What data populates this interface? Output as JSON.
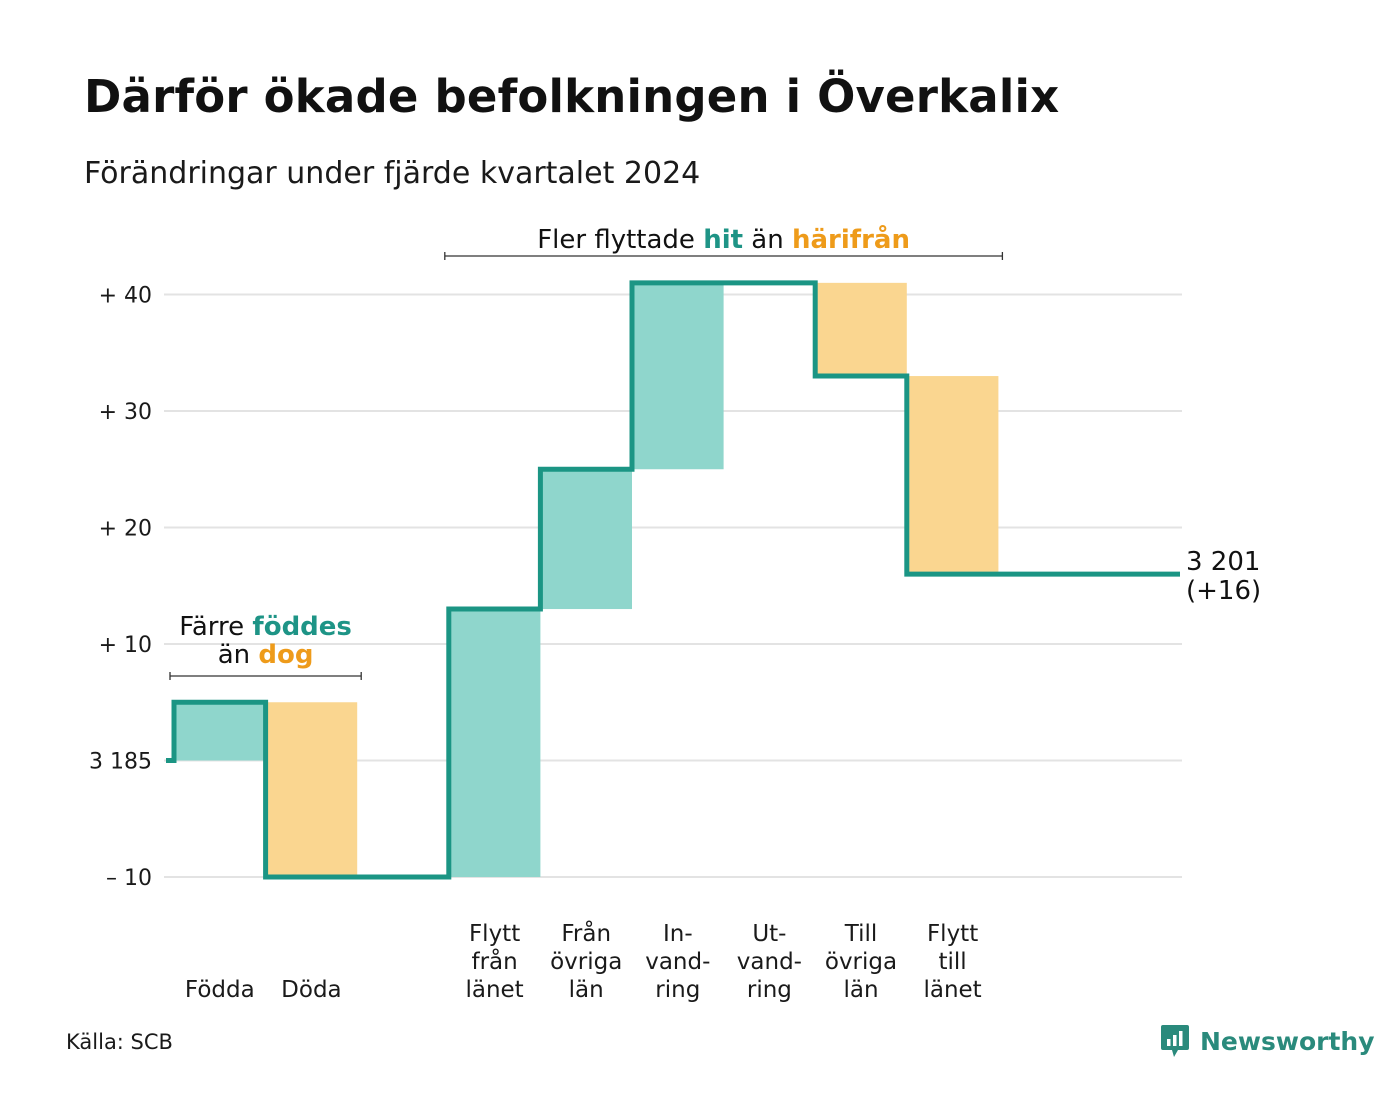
{
  "title": "Därför ökade befolkningen i Överkalix",
  "subtitle": "Förändringar under fjärde kvartalet 2024",
  "source": "Källa: SCB",
  "brand": {
    "name": "Newsworthy",
    "icon": "newsworthy-logo-icon"
  },
  "colors": {
    "inflow": "#8fd6cc",
    "outflow": "#fad690",
    "line": "#1b9584",
    "accent_teal": "#1e9486",
    "accent_orange": "#ee9b1a",
    "grid": "#e3e3e3"
  },
  "chart_data": {
    "type": "waterfall",
    "baseline": 3185,
    "ylim": [
      -10,
      40
    ],
    "yticks": [
      {
        "value": 40,
        "label": "+ 40"
      },
      {
        "value": 30,
        "label": "+ 30"
      },
      {
        "value": 20,
        "label": "+ 20"
      },
      {
        "value": 10,
        "label": "+ 10"
      },
      {
        "value": 0,
        "label": "3 185"
      },
      {
        "value": -10,
        "label": "– 10"
      }
    ],
    "categories": [
      {
        "label": [
          "Födda"
        ],
        "start": 0,
        "end": 5,
        "kind": "inflow"
      },
      {
        "label": [
          "Döda"
        ],
        "start": 5,
        "end": -10,
        "kind": "outflow"
      },
      {
        "label": [],
        "start": -10,
        "end": -10,
        "kind": "gap"
      },
      {
        "label": [
          "Flytt",
          "från",
          "länet"
        ],
        "start": -10,
        "end": 13,
        "kind": "inflow"
      },
      {
        "label": [
          "Från",
          "övriga",
          "län"
        ],
        "start": 13,
        "end": 25,
        "kind": "inflow"
      },
      {
        "label": [
          "In-",
          "vand-",
          "ring"
        ],
        "start": 25,
        "end": 41,
        "kind": "inflow"
      },
      {
        "label": [
          "Ut-",
          "vand-",
          "ring"
        ],
        "start": 41,
        "end": 41,
        "kind": "outflow"
      },
      {
        "label": [
          "Till",
          "övriga",
          "län"
        ],
        "start": 41,
        "end": 33,
        "kind": "outflow"
      },
      {
        "label": [
          "Flytt",
          "till",
          "länet"
        ],
        "start": 33,
        "end": 16,
        "kind": "outflow"
      }
    ],
    "end_value": {
      "value": 16,
      "label": [
        "3 201",
        "(+16)"
      ]
    },
    "annotations": [
      {
        "id": "birth",
        "lines": [
          [
            {
              "text": "Färre ",
              "style": "plain"
            },
            {
              "text": "föddes",
              "style": "teal"
            }
          ],
          [
            {
              "text": "än ",
              "style": "plain"
            },
            {
              "text": "dog",
              "style": "orange"
            }
          ]
        ],
        "span": [
          0,
          1
        ]
      },
      {
        "id": "migration",
        "lines": [
          [
            {
              "text": "Fler flyttade ",
              "style": "plain"
            },
            {
              "text": "hit",
              "style": "teal"
            },
            {
              "text": " än ",
              "style": "plain"
            },
            {
              "text": "härifrån",
              "style": "orange"
            }
          ]
        ],
        "span": [
          3,
          8
        ]
      }
    ]
  }
}
